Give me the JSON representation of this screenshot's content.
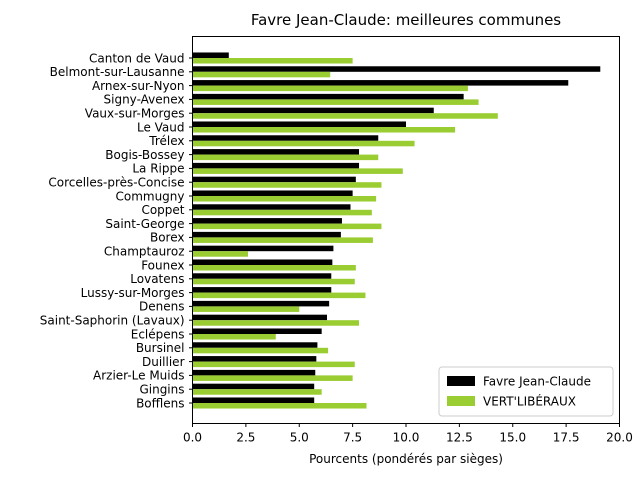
{
  "chart_data": {
    "type": "bar",
    "orientation": "horizontal",
    "title": "Favre Jean-Claude: meilleures communes",
    "xlabel": "Pourcents (pondérés par sièges)",
    "ylabel": "",
    "xlim": [
      0,
      20
    ],
    "xticks": [
      "0.0",
      "2.5",
      "5.0",
      "7.5",
      "10.0",
      "12.5",
      "15.0",
      "17.5",
      "20.0"
    ],
    "grid": false,
    "legend_position": "lower-right",
    "categories": [
      "Canton de Vaud",
      "Belmont-sur-Lausanne",
      "Arnex-sur-Nyon",
      "Signy-Avenex",
      "Vaux-sur-Morges",
      "Le Vaud",
      "Trélex",
      "Bogis-Bossey",
      "La Rippe",
      "Corcelles-près-Concise",
      "Commugny",
      "Coppet",
      "Saint-George",
      "Borex",
      "Champtauroz",
      "Founex",
      "Lovatens",
      "Lussy-sur-Morges",
      "Denens",
      "Saint-Saphorin (Lavaux)",
      "Eclépens",
      "Bursinel",
      "Duillier",
      "Arzier-Le Muids",
      "Gingins",
      "Bofflens"
    ],
    "series": [
      {
        "name": "Favre Jean-Claude",
        "color": "#000000",
        "values": [
          1.7,
          19.1,
          17.6,
          12.7,
          11.3,
          10.0,
          8.7,
          7.8,
          7.8,
          7.65,
          7.5,
          7.4,
          7.0,
          6.95,
          6.6,
          6.55,
          6.5,
          6.5,
          6.4,
          6.3,
          6.05,
          5.85,
          5.8,
          5.75,
          5.7,
          5.7
        ]
      },
      {
        "name": "VERT'LIBÉRAUX",
        "color": "#9acd32",
        "values": [
          7.5,
          6.45,
          12.9,
          13.4,
          14.3,
          12.3,
          10.4,
          8.7,
          9.85,
          8.85,
          8.6,
          8.4,
          8.85,
          8.45,
          2.6,
          7.65,
          7.6,
          8.1,
          5.0,
          7.8,
          3.9,
          6.35,
          7.6,
          7.5,
          6.05,
          8.15
        ]
      }
    ]
  }
}
